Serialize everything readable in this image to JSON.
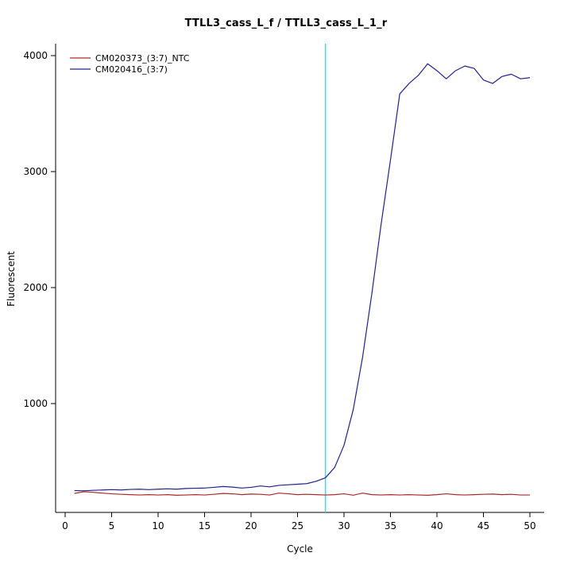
{
  "chart_data": {
    "type": "line",
    "title": "TTLL3_cass_L_f / TTLL3_cass_L_1_r",
    "xlabel": "Cycle",
    "ylabel": "Fluorescent",
    "xlim": [
      -2,
      52
    ],
    "ylim": [
      0,
      4100
    ],
    "x_ticks": [
      0,
      5,
      10,
      15,
      20,
      25,
      30,
      35,
      40,
      45,
      50
    ],
    "y_ticks": [
      1000,
      2000,
      3000,
      4000
    ],
    "grid": false,
    "legend_position": "top-left",
    "threshold_line": {
      "x": 28,
      "color": "#00EEEE"
    },
    "x": [
      1,
      2,
      3,
      4,
      5,
      6,
      7,
      8,
      9,
      10,
      11,
      12,
      13,
      14,
      15,
      16,
      17,
      18,
      19,
      20,
      21,
      22,
      23,
      24,
      25,
      26,
      27,
      28,
      29,
      30,
      31,
      32,
      33,
      34,
      35,
      36,
      37,
      38,
      39,
      40,
      41,
      42,
      43,
      44,
      45,
      46,
      47,
      48,
      49,
      50
    ],
    "series": [
      {
        "name": "CM020373_(3:7)_NTC",
        "color": "#A52A2A",
        "values": [
          225,
          240,
          235,
          228,
          222,
          218,
          215,
          212,
          215,
          212,
          215,
          210,
          212,
          215,
          212,
          218,
          225,
          222,
          215,
          220,
          218,
          212,
          228,
          222,
          215,
          218,
          215,
          212,
          215,
          222,
          210,
          228,
          215,
          212,
          215,
          212,
          215,
          212,
          210,
          215,
          222,
          215,
          212,
          215,
          218,
          220,
          215,
          218,
          212,
          212
        ]
      },
      {
        "name": "CM020416_(3:7)",
        "color": "#22228B",
        "values": [
          250,
          248,
          252,
          255,
          258,
          255,
          260,
          262,
          258,
          262,
          265,
          262,
          268,
          270,
          272,
          278,
          285,
          280,
          272,
          278,
          290,
          282,
          295,
          300,
          305,
          310,
          330,
          360,
          450,
          640,
          950,
          1400,
          1950,
          2550,
          3100,
          3670,
          3760,
          3830,
          3930,
          3870,
          3800,
          3870,
          3910,
          3890,
          3790,
          3760,
          3820,
          3840,
          3800,
          3810
        ]
      }
    ]
  }
}
